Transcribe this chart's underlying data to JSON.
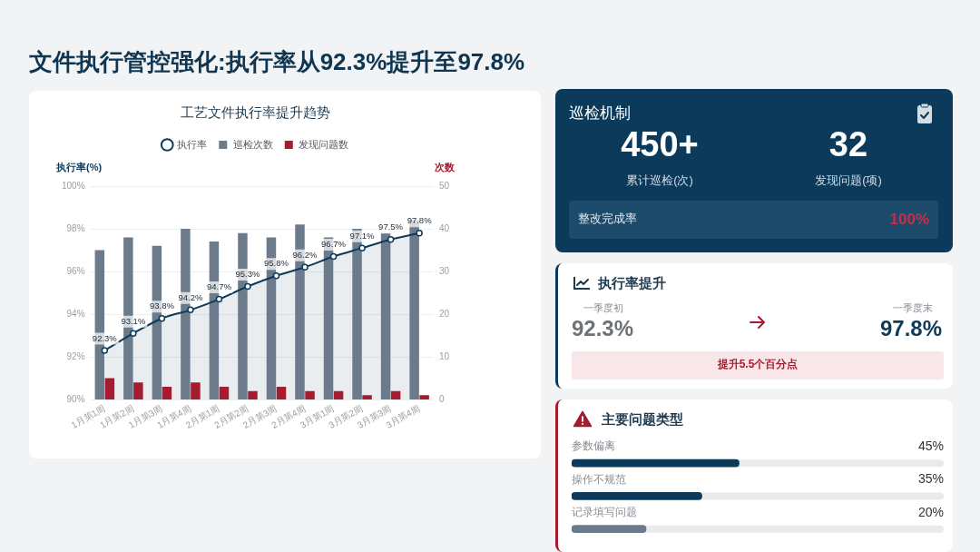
{
  "chart_data": [
    {
      "type": "other",
      "title": "文件执行管控强化:执行率从92.3%提升至97.8%"
    },
    {
      "type": "bar",
      "title": "工艺文件执行率提升趋势",
      "ylabel": "执行率(%)",
      "y2label": "次数",
      "categories": [
        "1月第1周",
        "1月第2周",
        "1月第3周",
        "1月第4周",
        "2月第1周",
        "2月第2周",
        "2月第3周",
        "2月第4周",
        "3月第1周",
        "3月第2周",
        "3月第3周",
        "3月第4周"
      ],
      "series": [
        {
          "name": "执行率",
          "type": "area",
          "color": "#0e3a5a",
          "values": [
            92.3,
            93.1,
            93.8,
            94.2,
            94.7,
            95.3,
            95.8,
            96.2,
            96.7,
            97.1,
            97.5,
            97.8
          ],
          "value_labels": [
            "92.3%",
            "93.1%",
            "93.8%",
            "94.2%",
            "94.7%",
            "95.3%",
            "95.8%",
            "96.2%",
            "96.7%",
            "97.1%",
            "97.5%",
            "97.8%"
          ]
        },
        {
          "name": "巡检次数",
          "type": "bar",
          "axis": "y2",
          "color": "#6b7b8b",
          "values": [
            35,
            38,
            36,
            40,
            37,
            39,
            38,
            41,
            38,
            40,
            39,
            42
          ]
        },
        {
          "name": "发现问题数",
          "type": "bar",
          "axis": "y2",
          "color": "#a51c30",
          "values": [
            5,
            4,
            3,
            4,
            3,
            2,
            3,
            2,
            2,
            1,
            2,
            1
          ]
        }
      ],
      "ylim": [
        90,
        100
      ],
      "yticks": [
        {
          "value": 90,
          "label": "90%"
        },
        {
          "value": 92,
          "label": "92%"
        },
        {
          "value": 94,
          "label": "94%"
        },
        {
          "value": 96,
          "label": "96%"
        },
        {
          "value": 98,
          "label": "98%"
        },
        {
          "value": 100,
          "label": "100%"
        }
      ],
      "y2lim": [
        0,
        50
      ],
      "y2ticks": [
        0,
        10,
        20,
        30,
        40,
        50
      ],
      "grid": "y",
      "legend": "top",
      "marker": "circle"
    },
    {
      "type": "other",
      "title": "巡检机制",
      "annotations": [
        "450+",
        "累计巡检(次)",
        "32",
        "发现问题(项)",
        "整改完成率",
        "100%"
      ]
    },
    {
      "type": "other",
      "title": "执行率提升",
      "annotations": [
        "一季度初",
        "92.3%",
        "一季度末",
        "97.8%",
        "提升5.5个百分点"
      ]
    },
    {
      "type": "bar",
      "orientation": "horizontal",
      "title": "主要问题类型",
      "categories": [
        "参数偏离",
        "操作不规范",
        "记录填写问题"
      ],
      "values": [
        45,
        35,
        20
      ],
      "colors": [
        "#0e3a5a",
        "#0e3a5a",
        "#6b7b8b"
      ],
      "value_labels": [
        "45%",
        "35%",
        "20%"
      ],
      "xlim": [
        0,
        100
      ],
      "tick_labels": "y"
    }
  ]
}
